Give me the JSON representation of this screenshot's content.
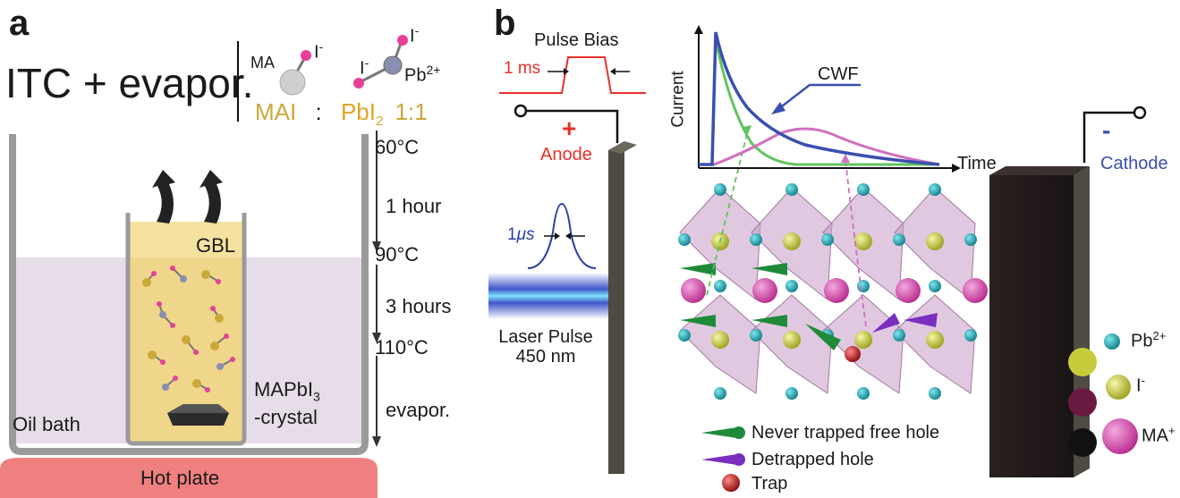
{
  "panel_a": {
    "letter": "a",
    "method": "ITC + evapor.",
    "mai_label": "MA",
    "mai_charge": "-",
    "mai_ion": "I",
    "pbi2_ion_left": "I",
    "pbi2_charge_left": "-",
    "pbi2_ion_top": "I",
    "pbi2_charge_top": "-",
    "pbi2_pb": "Pb",
    "pbi2_pb_charge": "2+",
    "name_mai": "MAI",
    "name_sep": ":",
    "name_pbi2": "PbI",
    "name_pbi2_sub": "2",
    "ratio": "1:1",
    "solvent": "GBL",
    "crystal_line1": "MAPbI",
    "crystal_sub": "3",
    "crystal_line2": "-crystal",
    "oil_bath": "Oil bath",
    "hot_plate": "Hot plate",
    "timeline": [
      "60°C",
      "1 hour",
      "90°C",
      "3 hours",
      "110°C",
      "evapor."
    ],
    "colors": {
      "solution": "#f0d68a",
      "oil": "#e6dde8",
      "hotplate": "#f08080",
      "container": "#9a9a9a",
      "mai_gold": "#c9a93a",
      "pbi2_gold": "#e0a426"
    }
  },
  "panel_b": {
    "letter": "b",
    "pulse_bias": "Pulse Bias",
    "pulse_width": "1 ms",
    "anode_sign": "+",
    "anode": "Anode",
    "cathode_sign": "-",
    "cathode": "Cathode",
    "laser_width_num": "1",
    "laser_width_unit": "μs",
    "laser_line1": "Laser Pulse",
    "laser_line2": "450 nm",
    "axis_y": "Current",
    "axis_x": "Time",
    "cwf": "CWF",
    "legend_ions": [
      {
        "label": "Pb",
        "sup": "2+",
        "color": "#1ca4b0"
      },
      {
        "label": "I",
        "sup": "-",
        "color": "#c8cc3a"
      },
      {
        "label": "MA",
        "sup": "+",
        "color": "#d44aa8"
      }
    ],
    "legend_holes": [
      {
        "label": "Never trapped free hole",
        "color": "#1e8a3a",
        "icon": "green-cone-icon"
      },
      {
        "label": "Detrapped hole",
        "color": "#7a2fc0",
        "icon": "purple-cone-icon"
      },
      {
        "label": "Trap",
        "color": "#c01818",
        "icon": "red-sphere-icon"
      }
    ],
    "colors": {
      "red": "#e8302a",
      "blue": "#3a4fb0",
      "green": "#5fc45f",
      "pink": "#d070c0",
      "electrode": "#4d4b42"
    }
  }
}
